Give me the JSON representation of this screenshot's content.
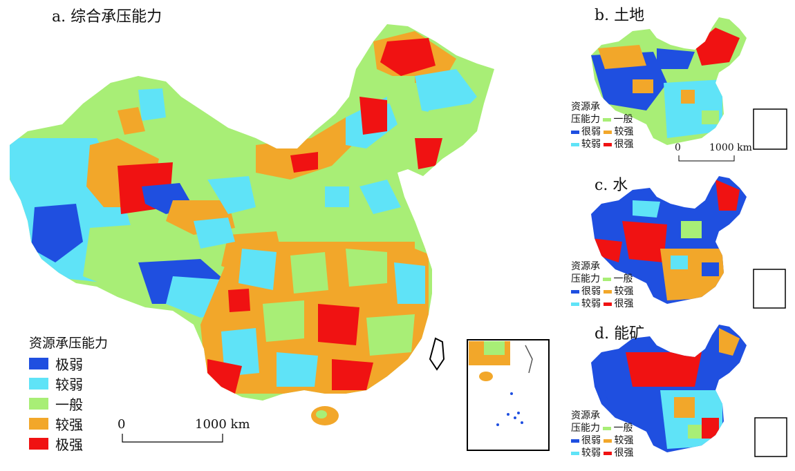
{
  "colors": {
    "very_weak": "#1f4fe0",
    "weak": "#5fe3f7",
    "general": "#a8ee76",
    "strong": "#f2a72a",
    "very_strong": "#f01212"
  },
  "panel_a": {
    "title": "a. 综合承压能力",
    "legend_title": "资源承压能力",
    "legend": [
      "极弱",
      "较弱",
      "一般",
      "较强",
      "极强"
    ],
    "scale_start": "0",
    "scale_end": "1000 km"
  },
  "panel_b": {
    "title": "b. 土地",
    "legend_title_line1": "资源承",
    "legend_title_line2": "压能力",
    "legend": {
      "general": "一般",
      "very_weak": "很弱",
      "strong": "较强",
      "weak": "较弱",
      "very_strong": "很强"
    },
    "scale_start": "0",
    "scale_end": "1000 km"
  },
  "panel_c": {
    "title": "c. 水",
    "legend_title_line1": "资源承",
    "legend_title_line2": "压能力",
    "legend": {
      "general": "一般",
      "very_weak": "很弱",
      "strong": "较强",
      "weak": "较弱",
      "very_strong": "很强"
    }
  },
  "panel_d": {
    "title": "d. 能矿",
    "legend_title_line1": "资源承",
    "legend_title_line2": "压能力",
    "legend": {
      "general": "一般",
      "very_weak": "很弱",
      "strong": "较强",
      "weak": "较弱",
      "very_strong": "很强"
    }
  }
}
